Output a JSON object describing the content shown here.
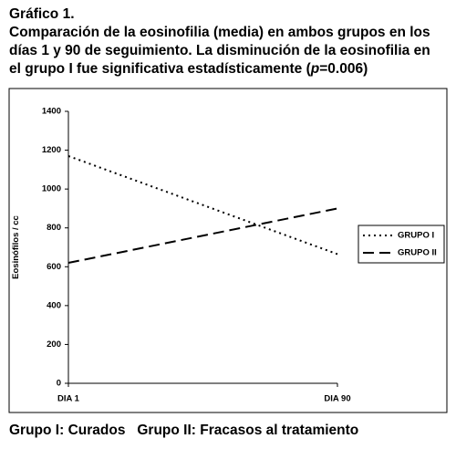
{
  "chart_data": {
    "type": "line",
    "heading": "Gráfico 1.",
    "title_lines": [
      "Comparación de la eosinofilia (media) en ambos grupos en los",
      "días 1 y 90 de seguimiento. La disminución de la eosinofilia en",
      "el grupo I fue significativa estadísticamente ("
    ],
    "title_italic": "p",
    "title_end": "=0.006)",
    "ylabel": "Eosinófilos / cc",
    "categories": [
      "DIA 1",
      "DIA 90"
    ],
    "series": [
      {
        "name": "GRUPO I",
        "color": "#000000",
        "dash": "2,4",
        "values": [
          1170,
          665
        ]
      },
      {
        "name": "GRUPO II",
        "color": "#000000",
        "dash": "12,6",
        "values": [
          620,
          900
        ]
      }
    ],
    "ylim": [
      0,
      1400
    ],
    "yticks": [
      0,
      200,
      400,
      600,
      800,
      1000,
      1200,
      1400
    ],
    "grid": false,
    "legend": "right",
    "footer": "Grupo I: Curados   Grupo II: Fracasos al tratamiento"
  }
}
